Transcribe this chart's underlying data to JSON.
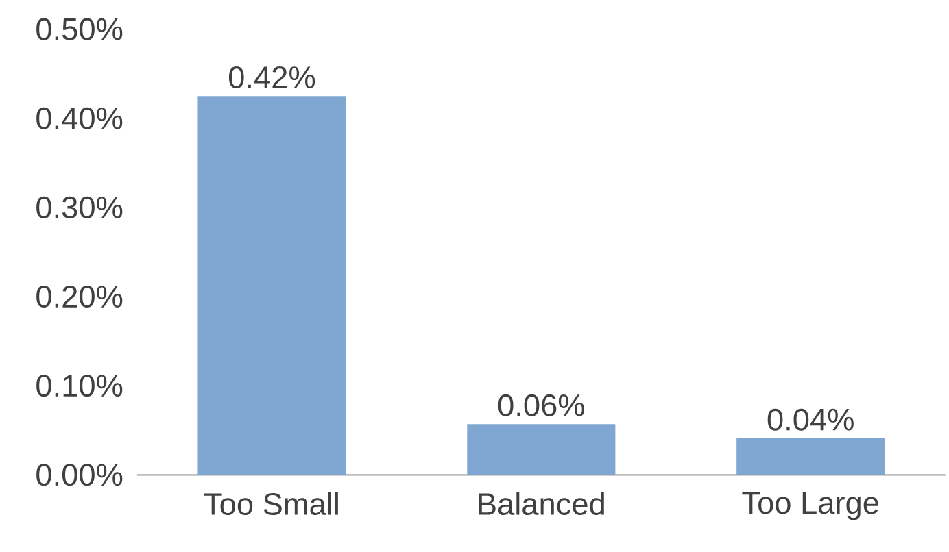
{
  "chart_data": {
    "type": "bar",
    "categories": [
      "Too Small",
      "Balanced",
      "Too Large"
    ],
    "values": [
      0.425,
      0.057,
      0.041
    ],
    "value_labels": [
      "0.42%",
      "0.06%",
      "0.04%"
    ],
    "color": "#7fa7d1",
    "ylim": [
      0,
      0.5
    ],
    "yticks": [
      {
        "value": 0,
        "label": "0.00%"
      },
      {
        "value": 0.1,
        "label": "0.10%"
      },
      {
        "value": 0.2,
        "label": "0.20%"
      },
      {
        "value": 0.3,
        "label": "0.30%"
      },
      {
        "value": 0.4,
        "label": "0.40%"
      },
      {
        "value": 0.5,
        "label": "0.50%"
      }
    ],
    "grid": false,
    "legend": false
  }
}
